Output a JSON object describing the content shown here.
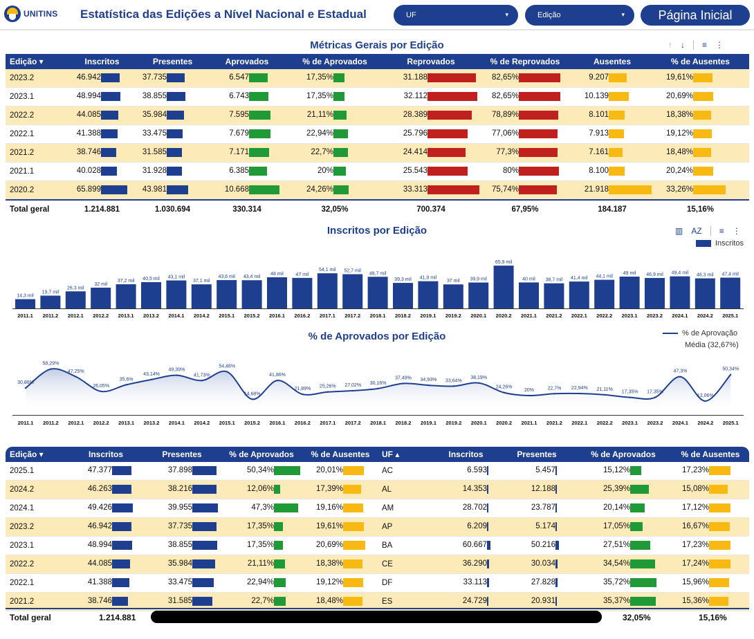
{
  "header": {
    "logo_text": "UNITINS",
    "title": "Estatística das Edições a Nível Nacional e Estadual",
    "uf_label": "UF",
    "edicao_label": "Edição",
    "home_label": "Página Inicial"
  },
  "metrics": {
    "title": "Métricas Gerais por Edição",
    "columns": [
      "Edição ▾",
      "Inscritos",
      "Presentes",
      "Aprovados",
      "% de Aprovados",
      "Reprovados",
      "% de Reprovados",
      "Ausentes",
      "% de Ausentes"
    ],
    "rows": [
      {
        "edicao": "2023.2",
        "inscritos": "46.942",
        "presentes": "37.735",
        "aprovados": "6.547",
        "pct_aprovados": "17,35%",
        "reprovados": "31.188",
        "pct_reprovados": "82,65%",
        "ausentes": "9.207",
        "pct_ausentes": "19,61%"
      },
      {
        "edicao": "2023.1",
        "inscritos": "48.994",
        "presentes": "38.855",
        "aprovados": "6.743",
        "pct_aprovados": "17,35%",
        "reprovados": "32.112",
        "pct_reprovados": "82,65%",
        "ausentes": "10.139",
        "pct_ausentes": "20,69%"
      },
      {
        "edicao": "2022.2",
        "inscritos": "44.085",
        "presentes": "35.984",
        "aprovados": "7.595",
        "pct_aprovados": "21,11%",
        "reprovados": "28.389",
        "pct_reprovados": "78,89%",
        "ausentes": "8.101",
        "pct_ausentes": "18,38%"
      },
      {
        "edicao": "2022.1",
        "inscritos": "41.388",
        "presentes": "33.475",
        "aprovados": "7.679",
        "pct_aprovados": "22,94%",
        "reprovados": "25.796",
        "pct_reprovados": "77,06%",
        "ausentes": "7.913",
        "pct_ausentes": "19,12%"
      },
      {
        "edicao": "2021.2",
        "inscritos": "38.746",
        "presentes": "31.585",
        "aprovados": "7.171",
        "pct_aprovados": "22,7%",
        "reprovados": "24.414",
        "pct_reprovados": "77,3%",
        "ausentes": "7.161",
        "pct_ausentes": "18,48%"
      },
      {
        "edicao": "2021.1",
        "inscritos": "40.028",
        "presentes": "31.928",
        "aprovados": "6.385",
        "pct_aprovados": "20%",
        "reprovados": "25.543",
        "pct_reprovados": "80%",
        "ausentes": "8.100",
        "pct_ausentes": "20,24%"
      },
      {
        "edicao": "2020.2",
        "inscritos": "65.899",
        "presentes": "43.981",
        "aprovados": "10.668",
        "pct_aprovados": "24,26%",
        "reprovados": "33.313",
        "pct_reprovados": "75,74%",
        "ausentes": "21.918",
        "pct_ausentes": "33,26%"
      }
    ],
    "total": {
      "label": "Total geral",
      "inscritos": "1.214.881",
      "presentes": "1.030.694",
      "aprovados": "330.314",
      "pct_aprovados": "32,05%",
      "reprovados": "700.374",
      "pct_reprovados": "67,95%",
      "ausentes": "184.187",
      "pct_ausentes": "15,16%"
    }
  },
  "inscritos_chart": {
    "title": "Inscritos por Edição",
    "legend": "Inscritos"
  },
  "aprov_chart": {
    "title": "% de Aprovados por Edição",
    "legend": "% de Aprovação",
    "media_label": "Média (32,67%)"
  },
  "chart_data": [
    {
      "type": "bar",
      "title": "Inscritos por Edição",
      "series_name": "Inscritos",
      "categories": [
        "2011.1",
        "2011.2",
        "2012.1",
        "2012.2",
        "2013.1",
        "2013.2",
        "2014.1",
        "2014.2",
        "2015.1",
        "2015.2",
        "2016.1",
        "2016.2",
        "2017.1",
        "2017.2",
        "2018.1",
        "2018.2",
        "2019.1",
        "2019.2",
        "2020.1",
        "2020.2",
        "2021.1",
        "2021.2",
        "2022.1",
        "2022.2",
        "2023.1",
        "2023.2",
        "2024.1",
        "2024.2",
        "2025.1"
      ],
      "values": [
        14.3,
        19.7,
        26.3,
        32,
        37.2,
        40.5,
        43.1,
        37.1,
        43.6,
        43.4,
        48,
        47,
        54.1,
        52.7,
        48.7,
        39.3,
        41.9,
        37,
        39.9,
        65.9,
        40,
        38.7,
        41.4,
        44.1,
        49,
        46.9,
        49.4,
        46.3,
        47.4
      ],
      "labels": [
        "14,3 mil",
        "19,7 mil",
        "26,3 mil",
        "32 mil",
        "37,2 mil",
        "40,5 mil",
        "43,1 mil",
        "37,1 mil",
        "43,6 mil",
        "43,4 mil",
        "48 mil",
        "47 mil",
        "54,1 mil",
        "52,7 mil",
        "48,7 mil",
        "39,3 mil",
        "41,9 mil",
        "37 mil",
        "39,9 mil",
        "65,9 mil",
        "40 mil",
        "38,7 mil",
        "41,4 mil",
        "44,1 mil",
        "49 mil",
        "46,9 mil",
        "49,4 mil",
        "46,3 mil",
        "47,4 mil"
      ],
      "unit": "mil",
      "ylim": [
        0,
        70
      ]
    },
    {
      "type": "area",
      "title": "% de Aprovados por Edição",
      "series_name": "% de Aprovação",
      "categories": [
        "2011.1",
        "2011.2",
        "2012.1",
        "2012.2",
        "2013.1",
        "2013.2",
        "2014.1",
        "2014.2",
        "2015.1",
        "2015.2",
        "2016.1",
        "2016.2",
        "2017.1",
        "2017.2",
        "2018.1",
        "2018.2",
        "2019.1",
        "2019.2",
        "2020.1",
        "2020.2",
        "2021.1",
        "2021.2",
        "2022.1",
        "2022.2",
        "2023.1",
        "2023.2",
        "2024.1",
        "2024.2",
        "2025.1"
      ],
      "values": [
        30.86,
        58.29,
        47.25,
        26.05,
        35.6,
        43.14,
        49.39,
        41.73,
        54.48,
        14.68,
        41.86,
        21.89,
        25.26,
        27.02,
        30.16,
        37.49,
        34.93,
        33.64,
        38.19,
        24.26,
        20,
        22.7,
        22.94,
        21.11,
        17.35,
        17.35,
        47.3,
        12.06,
        50.34
      ],
      "labels": [
        "30,86%",
        "58,29%",
        "47,25%",
        "26,05%",
        "35,6%",
        "43,14%",
        "49,39%",
        "41,73%",
        "54,48%",
        "14,68%",
        "41,86%",
        "21,89%",
        "25,26%",
        "27,02%",
        "30,16%",
        "37,49%",
        "34,93%",
        "33,64%",
        "38,19%",
        "24,26%",
        "20%",
        "22,7%",
        "22,94%",
        "21,11%",
        "17,35%",
        "17,35%",
        "47,3%",
        "12,06%",
        "50,34%"
      ],
      "media": 32.67,
      "ylim": [
        0,
        65
      ]
    }
  ],
  "edicao_table": {
    "columns": [
      "Edição ▾",
      "Inscritos",
      "Presentes",
      "% de Aprovados",
      "% de Ausentes"
    ],
    "rows": [
      {
        "edicao": "2025.1",
        "inscritos": "47.377",
        "presentes": "37.898",
        "pct_aprovados": "50,34%",
        "pct_ausentes": "20,01%"
      },
      {
        "edicao": "2024.2",
        "inscritos": "46.263",
        "presentes": "38.216",
        "pct_aprovados": "12,06%",
        "pct_ausentes": "17,39%"
      },
      {
        "edicao": "2024.1",
        "inscritos": "49.426",
        "presentes": "39.955",
        "pct_aprovados": "47,3%",
        "pct_ausentes": "19,16%"
      },
      {
        "edicao": "2023.2",
        "inscritos": "46.942",
        "presentes": "37.735",
        "pct_aprovados": "17,35%",
        "pct_ausentes": "19,61%"
      },
      {
        "edicao": "2023.1",
        "inscritos": "48.994",
        "presentes": "38.855",
        "pct_aprovados": "17,35%",
        "pct_ausentes": "20,69%"
      },
      {
        "edicao": "2022.2",
        "inscritos": "44.085",
        "presentes": "35.984",
        "pct_aprovados": "21,11%",
        "pct_ausentes": "18,38%"
      },
      {
        "edicao": "2022.1",
        "inscritos": "41.388",
        "presentes": "33.475",
        "pct_aprovados": "22,94%",
        "pct_ausentes": "19,12%"
      },
      {
        "edicao": "2021.2",
        "inscritos": "38.746",
        "presentes": "31.585",
        "pct_aprovados": "22,7%",
        "pct_ausentes": "18,48%"
      }
    ],
    "total": {
      "label": "Total geral",
      "inscritos": "1.214.881"
    }
  },
  "uf_table": {
    "columns": [
      "UF ▴",
      "Inscritos",
      "Presentes",
      "% de Aprovados",
      "% de Ausentes"
    ],
    "rows": [
      {
        "uf": "AC",
        "inscritos": "6.593",
        "presentes": "5.457",
        "pct_aprovados": "15,12%",
        "pct_ausentes": "17,23%"
      },
      {
        "uf": "AL",
        "inscritos": "14.353",
        "presentes": "12.188",
        "pct_aprovados": "25,39%",
        "pct_ausentes": "15,08%"
      },
      {
        "uf": "AM",
        "inscritos": "28.702",
        "presentes": "23.787",
        "pct_aprovados": "20,14%",
        "pct_ausentes": "17,12%"
      },
      {
        "uf": "AP",
        "inscritos": "6.209",
        "presentes": "5.174",
        "pct_aprovados": "17,05%",
        "pct_ausentes": "16,67%"
      },
      {
        "uf": "BA",
        "inscritos": "60.667",
        "presentes": "50.216",
        "pct_aprovados": "27,51%",
        "pct_ausentes": "17,23%"
      },
      {
        "uf": "CE",
        "inscritos": "36.290",
        "presentes": "30.034",
        "pct_aprovados": "34,54%",
        "pct_ausentes": "17,24%"
      },
      {
        "uf": "DF",
        "inscritos": "33.113",
        "presentes": "27.828",
        "pct_aprovados": "35,72%",
        "pct_ausentes": "15,96%"
      },
      {
        "uf": "ES",
        "inscritos": "24.729",
        "presentes": "20.931",
        "pct_aprovados": "35,37%",
        "pct_ausentes": "15,36%"
      }
    ],
    "total": {
      "pct_aprovados": "32,05%",
      "pct_ausentes": "15,16%"
    }
  }
}
